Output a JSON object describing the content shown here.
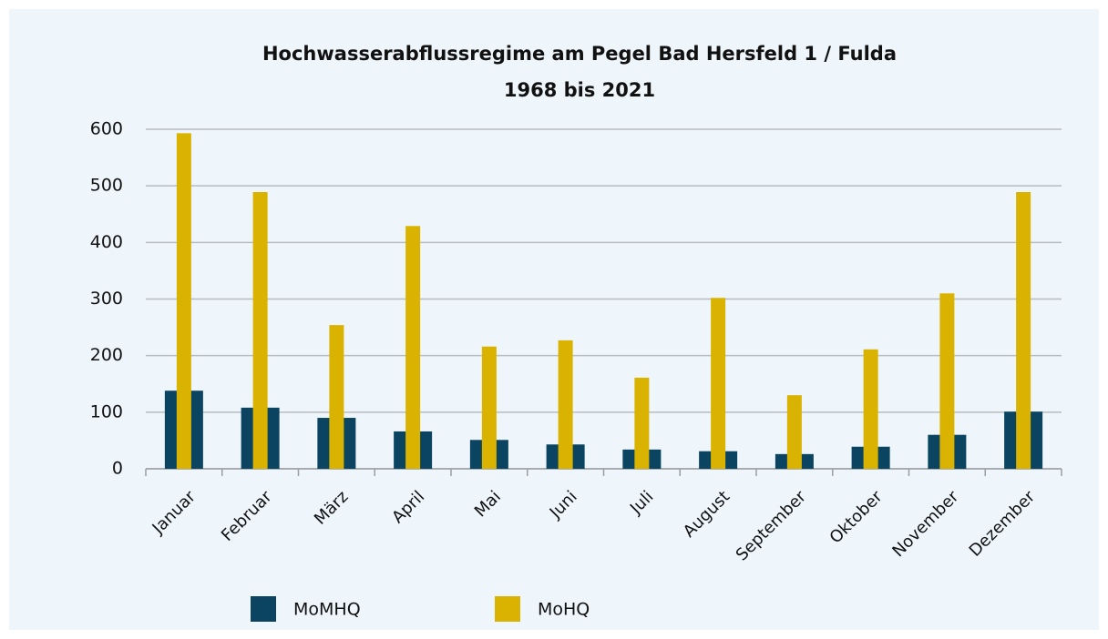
{
  "chart_data": {
    "type": "bar",
    "title": "Hochwasserabflussregime am Pegel Bad Hersfeld 1 / Fulda",
    "subtitle": "1968 bis 2021",
    "categories": [
      "Januar",
      "Februar",
      "März",
      "April",
      "Mai",
      "Juni",
      "Juli",
      "August",
      "September",
      "Oktober",
      "November",
      "Dezember"
    ],
    "series": [
      {
        "name": "MoMHQ",
        "color": "#0b4461",
        "values": [
          138,
          108,
          90,
          66,
          51,
          43,
          34,
          31,
          26,
          39,
          60,
          101
        ]
      },
      {
        "name": "MoHQ",
        "color": "#dab300",
        "values": [
          593,
          489,
          254,
          429,
          216,
          227,
          161,
          302,
          130,
          211,
          310,
          489
        ]
      }
    ],
    "ylim": [
      0,
      600
    ],
    "yticks": [
      0,
      100,
      200,
      300,
      400,
      500,
      600
    ],
    "grid": true
  }
}
